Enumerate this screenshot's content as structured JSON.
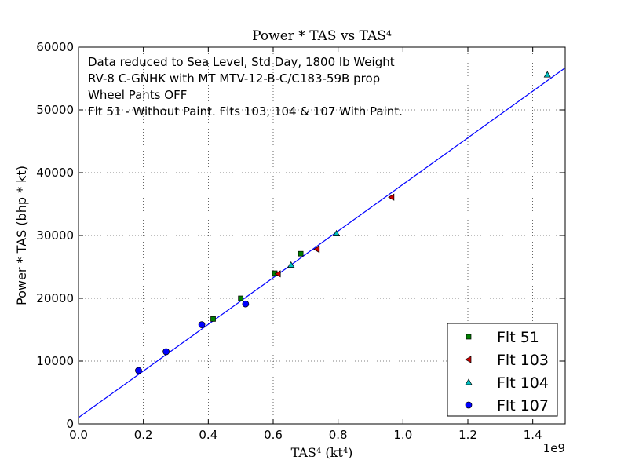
{
  "chart_data": {
    "type": "scatter",
    "title": "Power  *  TAS  vs  TAS⁴",
    "xlabel": "TAS⁴   (kt⁴)",
    "ylabel": "Power * TAS (bhp * kt)",
    "x_scale_label": "1e9",
    "xlim": [
      0.0,
      1.5
    ],
    "ylim": [
      0,
      60000
    ],
    "x_ticks": [
      "0.0",
      "0.2",
      "0.4",
      "0.6",
      "0.8",
      "1.0",
      "1.2",
      "1.4"
    ],
    "y_ticks": [
      "0",
      "10000",
      "20000",
      "30000",
      "40000",
      "50000",
      "60000"
    ],
    "grid": true,
    "legend_position": "lower-right",
    "annotations": [
      "Data reduced to Sea Level, Std Day, 1800 lb Weight",
      "RV-8 C-GNHK with MT MTV-12-B-C/C183-59B prop",
      "Wheel Pants OFF",
      "Flt 51 - Without Paint.  Flts 103, 104 & 107 With Paint."
    ],
    "series": [
      {
        "name": "Flt 51",
        "marker": "square",
        "color": "#008000",
        "x": [
          0.415,
          0.5,
          0.605,
          0.685
        ],
        "y": [
          16700,
          20000,
          24000,
          27100
        ]
      },
      {
        "name": "Flt 103",
        "marker": "triangle-left",
        "color": "#cc0000",
        "x": [
          0.615,
          0.735,
          0.965
        ],
        "y": [
          23900,
          27800,
          36100
        ]
      },
      {
        "name": "Flt 104",
        "marker": "triangle-up",
        "color": "#00bfbf",
        "x": [
          0.655,
          0.795,
          1.445
        ],
        "y": [
          25300,
          30300,
          55600
        ]
      },
      {
        "name": "Flt 107",
        "marker": "circle",
        "color": "#0000ff",
        "x": [
          0.185,
          0.27,
          0.38,
          0.515
        ],
        "y": [
          8500,
          11500,
          15800,
          19100
        ]
      }
    ],
    "fit_line": {
      "color": "#0000ff",
      "x": [
        0.0,
        1.5
      ],
      "y": [
        1000,
        56700
      ]
    }
  }
}
